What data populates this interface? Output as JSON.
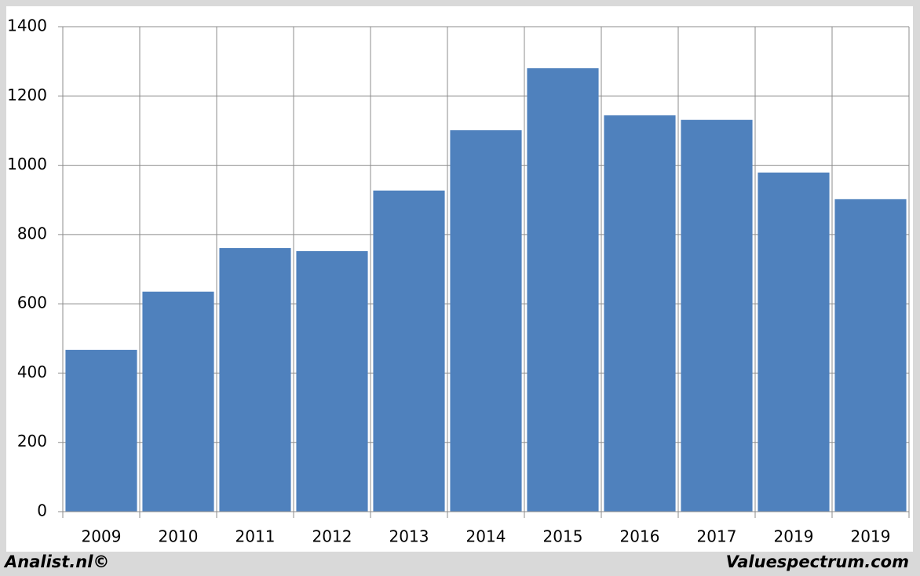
{
  "chart_data": {
    "type": "bar",
    "categories": [
      "2009",
      "2010",
      "2011",
      "2012",
      "2013",
      "2014",
      "2015",
      "2016",
      "2017",
      "2019",
      "2019"
    ],
    "values": [
      467,
      635,
      761,
      752,
      927,
      1101,
      1280,
      1144,
      1131,
      979,
      902
    ],
    "color": "#4f81bd",
    "ylim": [
      0,
      1400
    ],
    "yticks": [
      0,
      200,
      400,
      600,
      800,
      1000,
      1200,
      1400
    ],
    "grid": true
  },
  "footer_left": "Analist.nl©",
  "footer_right": "Valuespectrum.com"
}
